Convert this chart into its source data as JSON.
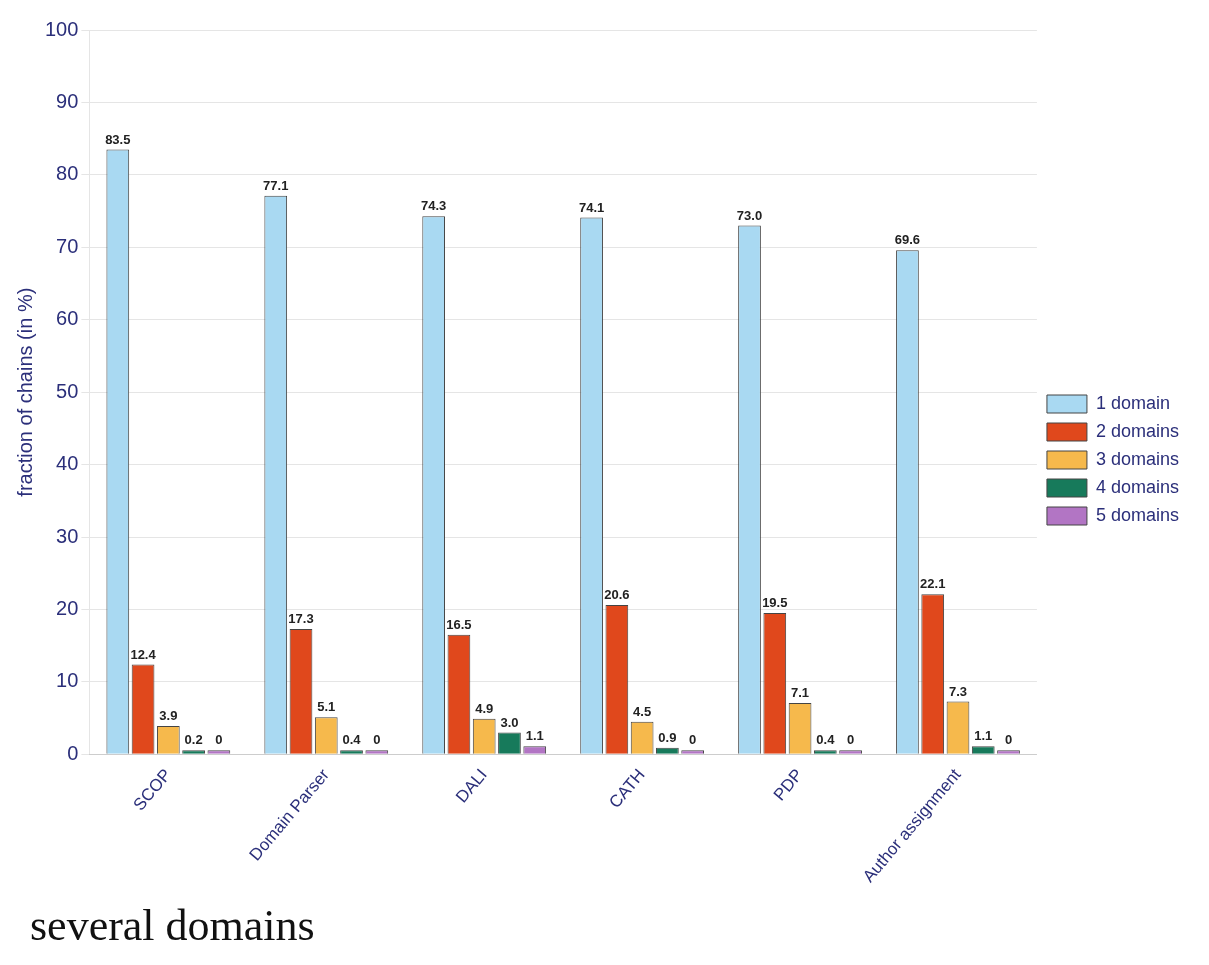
{
  "chart_data": {
    "type": "bar",
    "ylabel": "fraction of chains (in %)",
    "categories": [
      "SCOP",
      "Domain Parser",
      "DALI",
      "CATH",
      "PDP",
      "Author assignment"
    ],
    "series": [
      {
        "name": "1 domain",
        "color": "#a9d9f2",
        "values": [
          83.5,
          77.1,
          74.3,
          74.1,
          73.0,
          69.6
        ],
        "value_labels": [
          "83.5",
          "77.1",
          "74.3",
          "74.1",
          "73.0",
          "69.6"
        ]
      },
      {
        "name": "2 domains",
        "color": "#e0481c",
        "values": [
          12.4,
          17.3,
          16.5,
          20.6,
          19.5,
          22.1
        ],
        "value_labels": [
          "12.4",
          "17.3",
          "16.5",
          "20.6",
          "19.5",
          "22.1"
        ]
      },
      {
        "name": "3 domains",
        "color": "#f6b94c",
        "values": [
          3.9,
          5.1,
          4.9,
          4.5,
          7.1,
          7.3
        ],
        "value_labels": [
          "3.9",
          "5.1",
          "4.9",
          "4.5",
          "7.1",
          "7.3"
        ]
      },
      {
        "name": "4 domains",
        "color": "#177a5b",
        "values": [
          0.2,
          0.4,
          3.0,
          0.9,
          0.4,
          1.1
        ],
        "value_labels": [
          "0.2",
          "0.4",
          "3.0",
          "0.9",
          "0.4",
          "1.1"
        ]
      },
      {
        "name": "5 domains",
        "color": "#b275c4",
        "values": [
          0,
          0,
          1.1,
          0,
          0,
          0
        ],
        "value_labels": [
          "0",
          "0",
          "1.1",
          "0",
          "0",
          "0"
        ]
      }
    ],
    "ylim": [
      0,
      100
    ],
    "yticks": [
      0,
      10,
      20,
      30,
      40,
      50,
      60,
      70,
      80,
      90,
      100
    ],
    "grid": "y",
    "legend": "right",
    "annotations": [
      "several domains"
    ]
  }
}
